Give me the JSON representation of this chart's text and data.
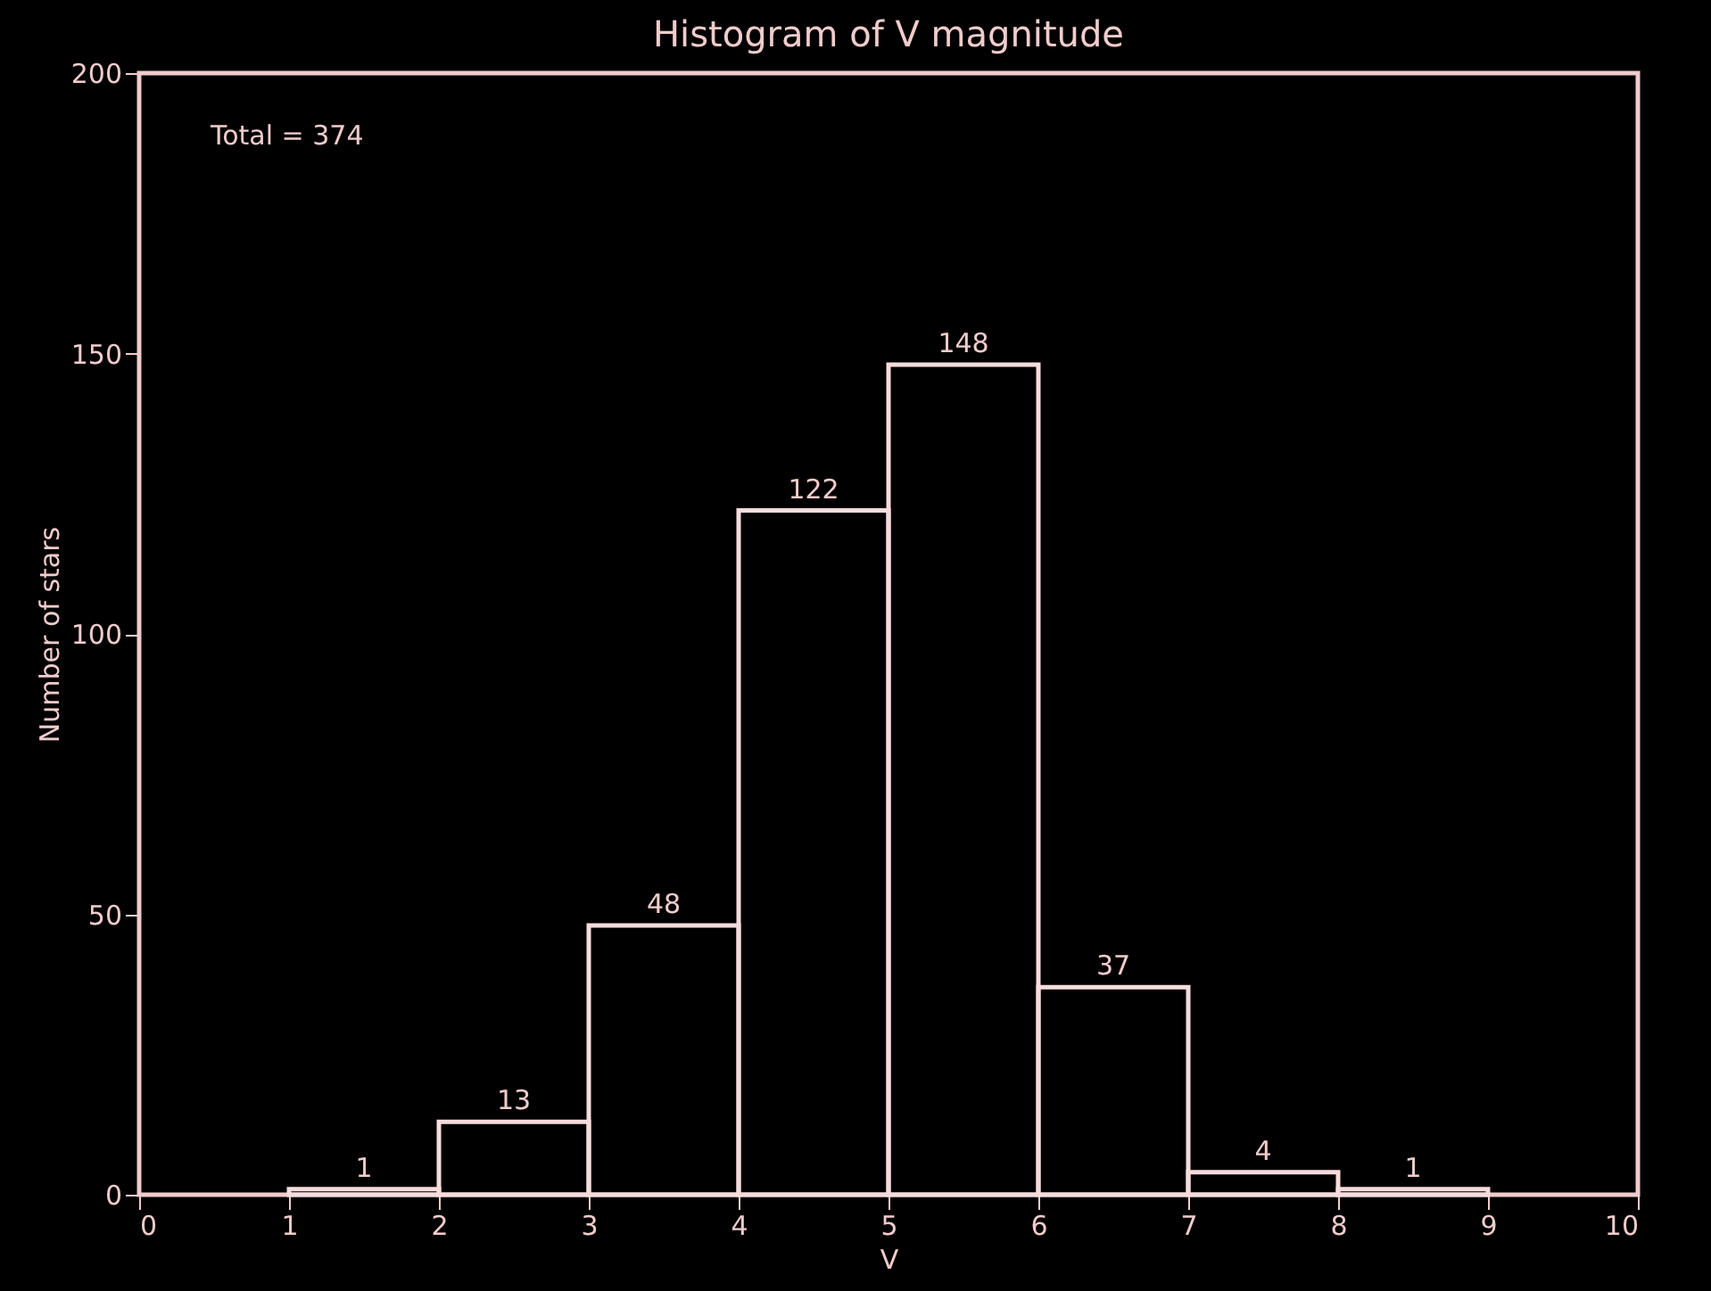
{
  "chart_data": {
    "type": "histogram",
    "title": "Histogram of V magnitude",
    "xlabel": "V",
    "ylabel": "Number of stars",
    "bins": [
      1,
      2,
      3,
      4,
      5,
      6,
      7,
      8,
      9
    ],
    "values": [
      1,
      13,
      48,
      122,
      148,
      37,
      4,
      1
    ],
    "color": "#f6dcdc",
    "data_labels": true,
    "annotations": [
      "Total = 374"
    ],
    "xlim": [
      0,
      10
    ],
    "xticks": [
      0,
      1,
      2,
      3,
      4,
      5,
      6,
      7,
      8,
      9,
      10
    ],
    "ylim": [
      0,
      200
    ],
    "yticks": [
      0,
      50,
      100,
      150,
      200
    ],
    "grid": false
  }
}
